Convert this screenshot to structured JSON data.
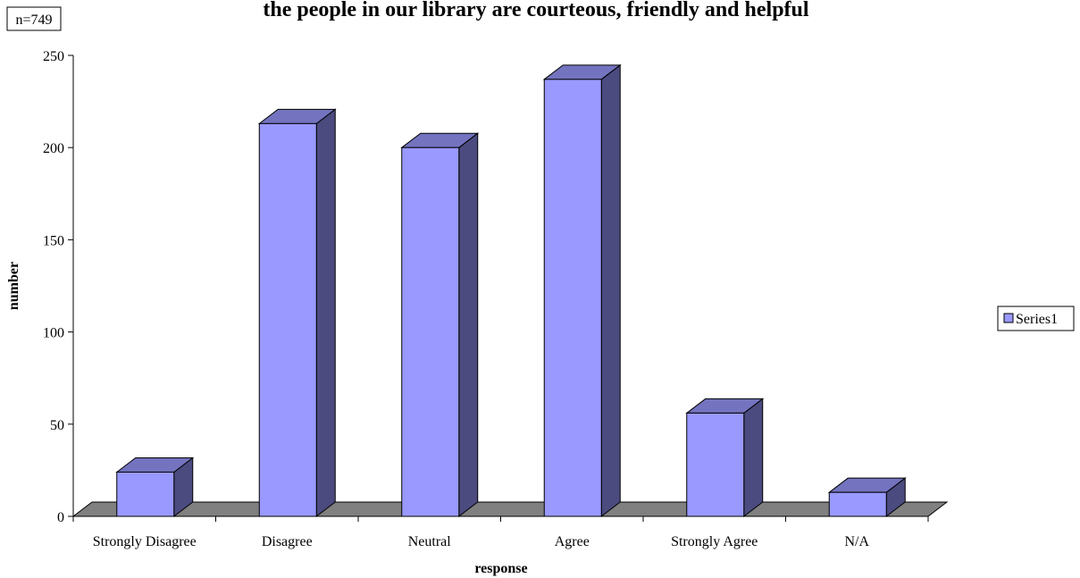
{
  "chart_data": {
    "type": "bar",
    "title": "the people in our library are courteous, friendly and helpful",
    "xlabel": "response",
    "ylabel": "number",
    "categories": [
      "Strongly Disagree",
      "Disagree",
      "Neutral",
      "Agree",
      "Strongly Agree",
      "N/A"
    ],
    "series": [
      {
        "name": "Series1",
        "values": [
          24,
          213,
          200,
          237,
          56,
          13
        ]
      }
    ],
    "ylim": [
      0,
      250
    ],
    "yticks": [
      0,
      50,
      100,
      150,
      200,
      250
    ],
    "annotation": "n=749",
    "legend_position": "right",
    "grid": false,
    "style": "3d-column"
  },
  "colors": {
    "bar_front": "#9999ff",
    "bar_side": "#4b4b80",
    "bar_top": "#7373bf",
    "floor": "#808080"
  }
}
